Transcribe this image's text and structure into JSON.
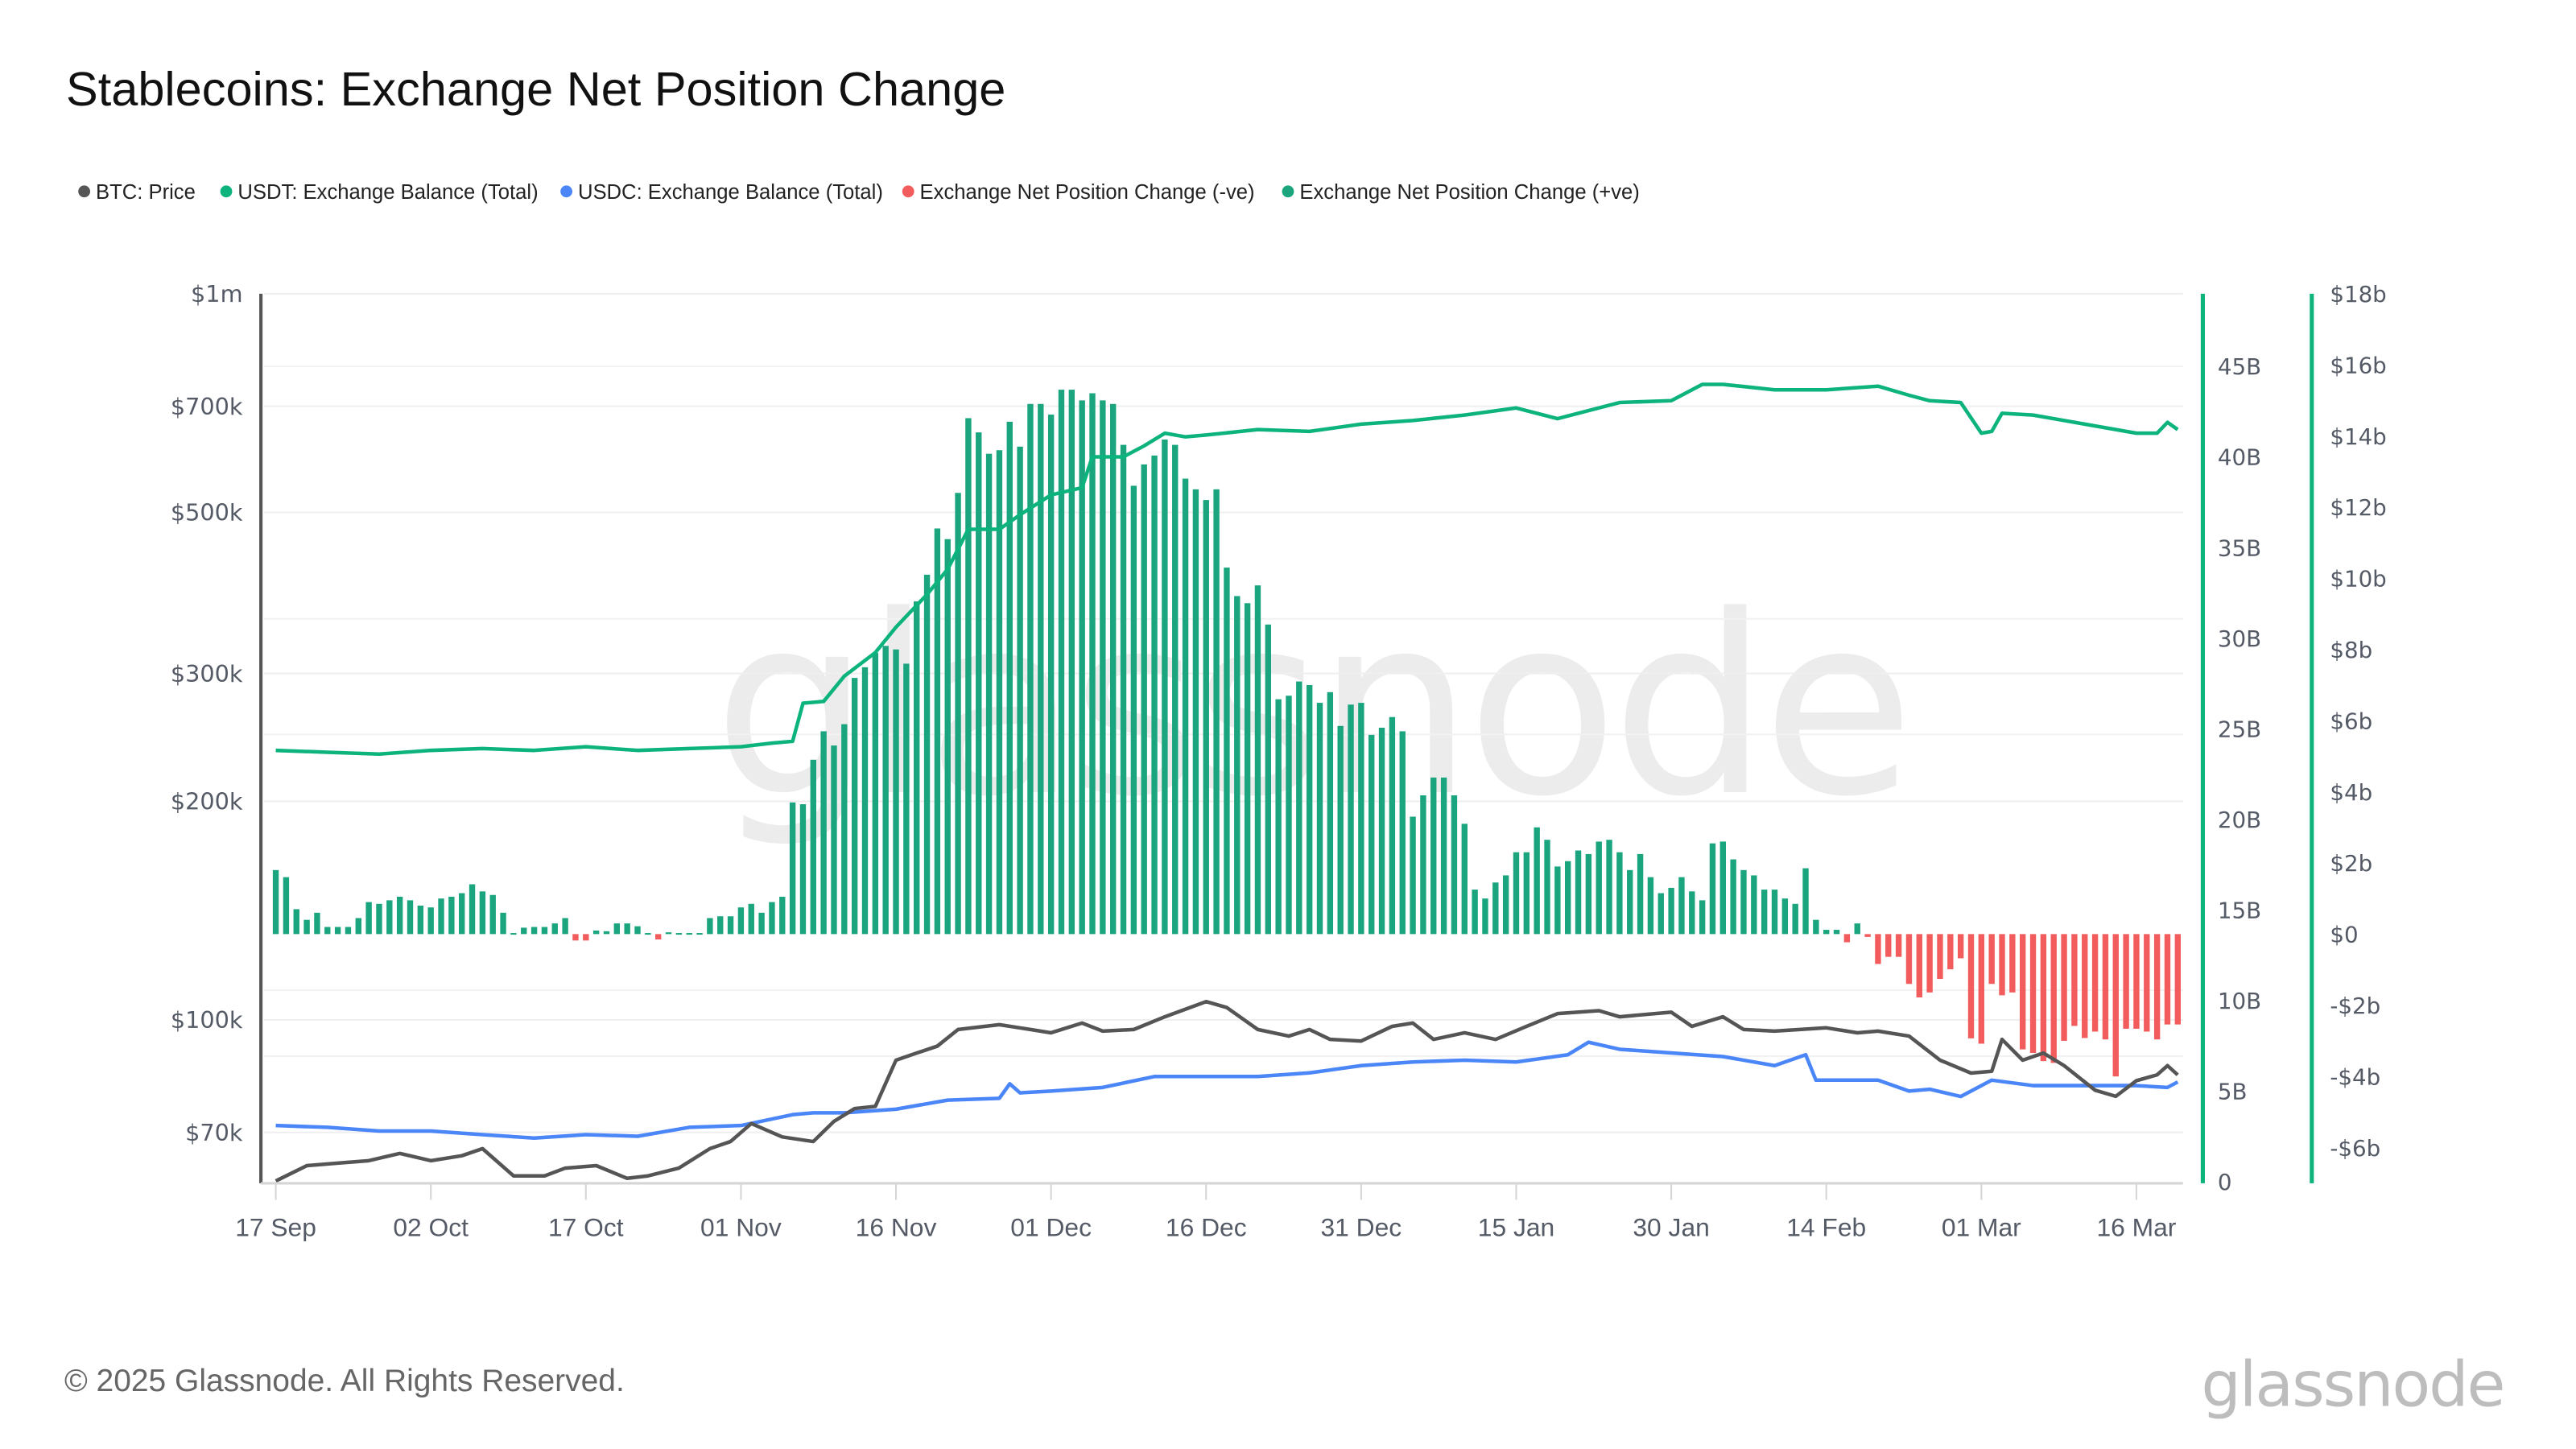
{
  "title": "Stablecoins: Exchange Net Position Change",
  "footer": "© 2025 Glassnode. All Rights Reserved.",
  "logo": "glassnode",
  "watermark": "glassnode",
  "legend": [
    {
      "label": "BTC: Price",
      "color": "#555555"
    },
    {
      "label": "USDT: Exchange Balance (Total)",
      "color": "#0db37d"
    },
    {
      "label": "USDC: Exchange Balance (Total)",
      "color": "#4a86f7"
    },
    {
      "label": "Exchange Net Position Change (-ve)",
      "color": "#f25c5c"
    },
    {
      "label": "Exchange Net Position Change (+ve)",
      "color": "#1aa57e"
    }
  ],
  "chart_data": {
    "type": "bar+line",
    "title": "Stablecoins: Exchange Net Position Change",
    "x_start_date": "17 Sep",
    "x_unit": "day index from 17 Sep",
    "x_ticks": [
      {
        "day": 0,
        "label": "17 Sep"
      },
      {
        "day": 15,
        "label": "02 Oct"
      },
      {
        "day": 30,
        "label": "17 Oct"
      },
      {
        "day": 45,
        "label": "01 Nov"
      },
      {
        "day": 60,
        "label": "16 Nov"
      },
      {
        "day": 75,
        "label": "01 Dec"
      },
      {
        "day": 90,
        "label": "16 Dec"
      },
      {
        "day": 105,
        "label": "31 Dec"
      },
      {
        "day": 120,
        "label": "15 Jan"
      },
      {
        "day": 135,
        "label": "30 Jan"
      },
      {
        "day": 150,
        "label": "14 Feb"
      },
      {
        "day": 165,
        "label": "01 Mar"
      },
      {
        "day": 180,
        "label": "16 Mar"
      }
    ],
    "axes": {
      "btc_price": {
        "scale": "log",
        "range": [
          60000,
          1000000
        ],
        "ticks": [
          {
            "v": 1000000,
            "label": "$1m"
          },
          {
            "v": 700000,
            "label": "$700k"
          },
          {
            "v": 500000,
            "label": "$500k"
          },
          {
            "v": 300000,
            "label": "$300k"
          },
          {
            "v": 200000,
            "label": "$200k"
          },
          {
            "v": 100000,
            "label": "$100k"
          },
          {
            "v": 70000,
            "label": "$70k"
          }
        ]
      },
      "balance": {
        "scale": "linear",
        "range": [
          0,
          49
        ],
        "ticks": [
          {
            "v": 0,
            "label": "0"
          },
          {
            "v": 5,
            "label": "5B"
          },
          {
            "v": 10,
            "label": "10B"
          },
          {
            "v": 15,
            "label": "15B"
          },
          {
            "v": 20,
            "label": "20B"
          },
          {
            "v": 25,
            "label": "25B"
          },
          {
            "v": 30,
            "label": "30B"
          },
          {
            "v": 35,
            "label": "35B"
          },
          {
            "v": 40,
            "label": "40B"
          },
          {
            "v": 45,
            "label": "45B"
          }
        ]
      },
      "net_change": {
        "scale": "linear",
        "range": [
          -6.96,
          18
        ],
        "ticks": [
          {
            "v": 18,
            "label": "$18b"
          },
          {
            "v": 16,
            "label": "$16b"
          },
          {
            "v": 14,
            "label": "$14b"
          },
          {
            "v": 12,
            "label": "$12b"
          },
          {
            "v": 10,
            "label": "$10b"
          },
          {
            "v": 8,
            "label": "$8b"
          },
          {
            "v": 6,
            "label": "$6b"
          },
          {
            "v": 4,
            "label": "$4b"
          },
          {
            "v": 2,
            "label": "$2b"
          },
          {
            "v": 0,
            "label": "$0"
          },
          {
            "v": -2,
            "label": "-$2b"
          },
          {
            "v": -4,
            "label": "-$4b"
          },
          {
            "v": -6,
            "label": "-$6b"
          }
        ]
      }
    },
    "net_position_change_b": [
      1.8,
      1.6,
      0.7,
      0.4,
      0.6,
      0.2,
      0.2,
      0.2,
      0.45,
      0.9,
      0.85,
      0.95,
      1.05,
      0.95,
      0.8,
      0.75,
      1.0,
      1.05,
      1.15,
      1.4,
      1.2,
      1.1,
      0.6,
      0.03,
      0.18,
      0.2,
      0.2,
      0.3,
      0.45,
      -0.18,
      -0.18,
      0.1,
      0.08,
      0.3,
      0.3,
      0.22,
      0.03,
      -0.15,
      0.05,
      0.03,
      0.03,
      0.03,
      0.45,
      0.5,
      0.5,
      0.75,
      0.85,
      0.6,
      0.9,
      1.05,
      3.7,
      3.65,
      4.9,
      5.7,
      5.3,
      5.9,
      7.2,
      7.5,
      7.9,
      8.1,
      8.0,
      7.6,
      9.35,
      10.1,
      11.4,
      11.1,
      12.4,
      14.5,
      14.1,
      13.5,
      13.6,
      14.4,
      13.7,
      14.9,
      14.9,
      14.6,
      15.3,
      15.3,
      15.0,
      15.2,
      15.0,
      14.9,
      13.75,
      12.6,
      13.2,
      13.45,
      13.9,
      13.75,
      12.8,
      12.5,
      12.2,
      12.5,
      10.3,
      9.5,
      9.3,
      9.8,
      8.7,
      6.6,
      6.7,
      7.1,
      7.0,
      6.5,
      6.8,
      5.85,
      6.45,
      6.5,
      5.6,
      5.8,
      6.1,
      5.7,
      3.3,
      3.9,
      4.4,
      4.4,
      3.9,
      3.1,
      1.25,
      1.0,
      1.45,
      1.65,
      2.3,
      2.3,
      3.0,
      2.65,
      1.9,
      2.05,
      2.35,
      2.25,
      2.6,
      2.65,
      2.3,
      1.8,
      2.25,
      1.6,
      1.15,
      1.3,
      1.6,
      1.2,
      0.95,
      2.55,
      2.6,
      2.1,
      1.8,
      1.65,
      1.25,
      1.25,
      1.0,
      0.85,
      1.85,
      0.4,
      0.12,
      0.12,
      -0.23,
      0.3,
      -0.08,
      -0.84,
      -0.64,
      -0.64,
      -1.4,
      -1.78,
      -1.64,
      -1.26,
      -0.99,
      -0.68,
      -2.93,
      -3.08,
      -1.4,
      -1.72,
      -1.64,
      -3.24,
      -3.34,
      -3.57,
      -3.62,
      -3.0,
      -2.58,
      -2.92,
      -2.74,
      -2.96,
      -4.0,
      -2.66,
      -2.66,
      -2.74,
      -2.96,
      -2.54,
      -2.54
    ],
    "series": [
      {
        "name": "USDT: Exchange Balance (Total)",
        "unit": "B",
        "axis": "balance",
        "points": [
          [
            0,
            23.8
          ],
          [
            5,
            23.7
          ],
          [
            10,
            23.6
          ],
          [
            15,
            23.8
          ],
          [
            20,
            23.9
          ],
          [
            25,
            23.8
          ],
          [
            30,
            24.0
          ],
          [
            35,
            23.8
          ],
          [
            40,
            23.9
          ],
          [
            45,
            24.0
          ],
          [
            48,
            24.2
          ],
          [
            50,
            24.3
          ],
          [
            51,
            26.4
          ],
          [
            53,
            26.5
          ],
          [
            55,
            27.9
          ],
          [
            58,
            29.2
          ],
          [
            60,
            30.6
          ],
          [
            63,
            32.4
          ],
          [
            65,
            33.8
          ],
          [
            67,
            36.0
          ],
          [
            70,
            36.0
          ],
          [
            72,
            36.8
          ],
          [
            75,
            37.9
          ],
          [
            78,
            38.3
          ],
          [
            79,
            40.0
          ],
          [
            82,
            40.0
          ],
          [
            84,
            40.6
          ],
          [
            86,
            41.3
          ],
          [
            88,
            41.1
          ],
          [
            90,
            41.2
          ],
          [
            95,
            41.5
          ],
          [
            100,
            41.4
          ],
          [
            105,
            41.8
          ],
          [
            110,
            42.0
          ],
          [
            115,
            42.3
          ],
          [
            120,
            42.7
          ],
          [
            124,
            42.1
          ],
          [
            130,
            43.0
          ],
          [
            135,
            43.1
          ],
          [
            138,
            44.0
          ],
          [
            140,
            44.0
          ],
          [
            145,
            43.7
          ],
          [
            150,
            43.7
          ],
          [
            155,
            43.9
          ],
          [
            158,
            43.4
          ],
          [
            160,
            43.1
          ],
          [
            163,
            43.0
          ],
          [
            165,
            41.3
          ],
          [
            166,
            41.4
          ],
          [
            167,
            42.4
          ],
          [
            170,
            42.3
          ],
          [
            175,
            41.8
          ],
          [
            180,
            41.3
          ],
          [
            182,
            41.3
          ],
          [
            183,
            41.9
          ],
          [
            184,
            41.5
          ]
        ]
      },
      {
        "name": "USDC: Exchange Balance (Total)",
        "unit": "B",
        "axis": "balance",
        "points": [
          [
            0,
            3.1
          ],
          [
            5,
            3.0
          ],
          [
            10,
            2.8
          ],
          [
            15,
            2.8
          ],
          [
            20,
            2.6
          ],
          [
            25,
            2.4
          ],
          [
            30,
            2.6
          ],
          [
            35,
            2.5
          ],
          [
            40,
            3.0
          ],
          [
            45,
            3.1
          ],
          [
            50,
            3.7
          ],
          [
            52,
            3.8
          ],
          [
            55,
            3.8
          ],
          [
            60,
            4.0
          ],
          [
            65,
            4.5
          ],
          [
            70,
            4.6
          ],
          [
            71,
            5.4
          ],
          [
            72,
            4.9
          ],
          [
            75,
            5.0
          ],
          [
            80,
            5.2
          ],
          [
            85,
            5.8
          ],
          [
            90,
            5.8
          ],
          [
            95,
            5.8
          ],
          [
            100,
            6.0
          ],
          [
            105,
            6.4
          ],
          [
            110,
            6.6
          ],
          [
            115,
            6.7
          ],
          [
            120,
            6.6
          ],
          [
            125,
            7.0
          ],
          [
            127,
            7.7
          ],
          [
            130,
            7.3
          ],
          [
            135,
            7.1
          ],
          [
            140,
            6.9
          ],
          [
            145,
            6.4
          ],
          [
            148,
            7.0
          ],
          [
            149,
            5.6
          ],
          [
            150,
            5.6
          ],
          [
            155,
            5.6
          ],
          [
            158,
            5.0
          ],
          [
            160,
            5.1
          ],
          [
            163,
            4.7
          ],
          [
            166,
            5.6
          ],
          [
            170,
            5.3
          ],
          [
            175,
            5.3
          ],
          [
            180,
            5.3
          ],
          [
            183,
            5.2
          ],
          [
            184,
            5.5
          ]
        ]
      },
      {
        "name": "BTC: Price",
        "unit": "USD",
        "axis": "btc_price",
        "points": [
          [
            0,
            60000
          ],
          [
            3,
            63000
          ],
          [
            6,
            63500
          ],
          [
            9,
            64000
          ],
          [
            12,
            65500
          ],
          [
            15,
            64000
          ],
          [
            18,
            65000
          ],
          [
            20,
            66500
          ],
          [
            23,
            61000
          ],
          [
            26,
            61000
          ],
          [
            28,
            62500
          ],
          [
            31,
            63000
          ],
          [
            34,
            60500
          ],
          [
            36,
            61000
          ],
          [
            39,
            62500
          ],
          [
            42,
            66500
          ],
          [
            44,
            68000
          ],
          [
            46,
            72000
          ],
          [
            49,
            69000
          ],
          [
            52,
            68000
          ],
          [
            54,
            72500
          ],
          [
            56,
            75500
          ],
          [
            58,
            76000
          ],
          [
            60,
            88000
          ],
          [
            62,
            90000
          ],
          [
            64,
            92000
          ],
          [
            66,
            97000
          ],
          [
            70,
            98500
          ],
          [
            73,
            97000
          ],
          [
            75,
            96000
          ],
          [
            78,
            99000
          ],
          [
            80,
            96500
          ],
          [
            83,
            97000
          ],
          [
            86,
            101000
          ],
          [
            90,
            106000
          ],
          [
            92,
            104000
          ],
          [
            95,
            97000
          ],
          [
            98,
            95000
          ],
          [
            100,
            97000
          ],
          [
            102,
            94000
          ],
          [
            105,
            93500
          ],
          [
            108,
            98000
          ],
          [
            110,
            99000
          ],
          [
            112,
            94000
          ],
          [
            115,
            96000
          ],
          [
            118,
            94000
          ],
          [
            121,
            98000
          ],
          [
            124,
            102000
          ],
          [
            128,
            103000
          ],
          [
            130,
            101000
          ],
          [
            135,
            102500
          ],
          [
            137,
            98000
          ],
          [
            140,
            101000
          ],
          [
            142,
            97000
          ],
          [
            145,
            96500
          ],
          [
            150,
            97500
          ],
          [
            153,
            96000
          ],
          [
            155,
            96500
          ],
          [
            158,
            95000
          ],
          [
            161,
            88000
          ],
          [
            164,
            84500
          ],
          [
            166,
            85000
          ],
          [
            167,
            94000
          ],
          [
            169,
            88000
          ],
          [
            171,
            90000
          ],
          [
            173,
            86500
          ],
          [
            176,
            80000
          ],
          [
            178,
            78500
          ],
          [
            180,
            82500
          ],
          [
            182,
            84000
          ],
          [
            183,
            86500
          ],
          [
            184,
            84000
          ]
        ]
      }
    ]
  }
}
